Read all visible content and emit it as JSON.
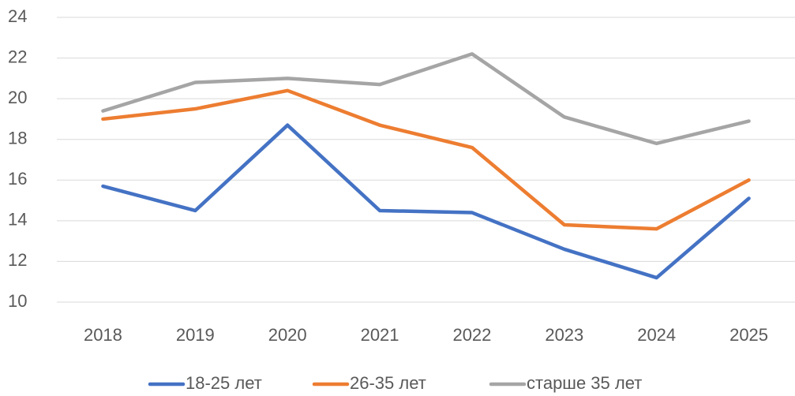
{
  "chart_data": {
    "type": "line",
    "categories": [
      "2018",
      "2019",
      "2020",
      "2021",
      "2022",
      "2023",
      "2024",
      "2025"
    ],
    "series": [
      {
        "name": "18-25 лет",
        "color": "#4472c4",
        "values": [
          15.7,
          14.5,
          18.7,
          14.5,
          14.4,
          12.6,
          11.2,
          15.1
        ]
      },
      {
        "name": "26-35 лет",
        "color": "#ed7d31",
        "values": [
          19.0,
          19.5,
          20.4,
          18.7,
          17.6,
          13.8,
          13.6,
          16.0
        ]
      },
      {
        "name": "старше 35 лет",
        "color": "#a5a5a5",
        "values": [
          19.4,
          20.8,
          21.0,
          20.7,
          22.2,
          19.1,
          17.8,
          18.9
        ]
      }
    ],
    "ylim": [
      10,
      24
    ],
    "yticks": [
      10,
      12,
      14,
      16,
      18,
      20,
      22,
      24
    ],
    "grid": true,
    "legend": "bottom"
  }
}
